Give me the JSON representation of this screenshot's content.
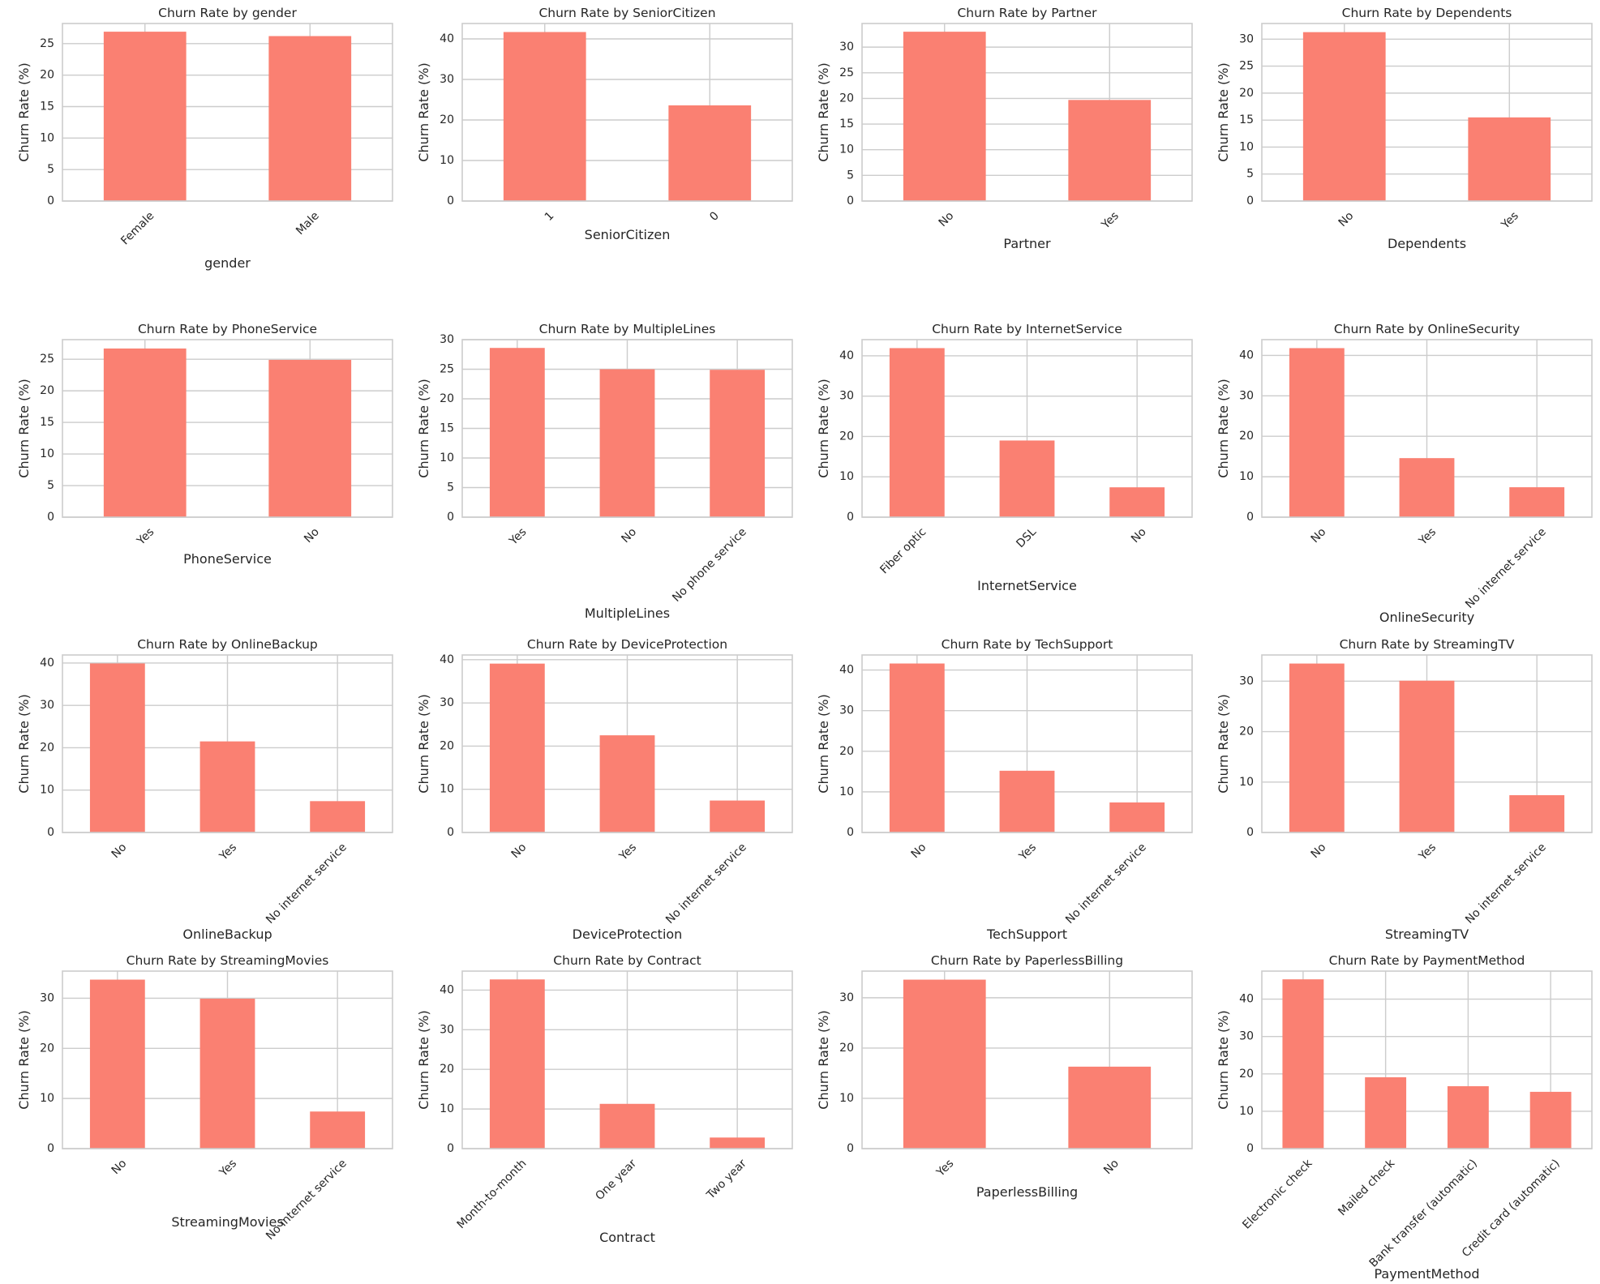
{
  "colors": {
    "bar": "#FA8072",
    "grid": "#cccccc",
    "background": "#ffffff"
  },
  "chart_data": [
    {
      "type": "bar",
      "title": "Churn Rate by gender",
      "xlabel": "gender",
      "ylabel": "Churn Rate (%)",
      "categories": [
        "Female",
        "Male"
      ],
      "values": [
        26.9,
        26.2
      ],
      "ylim": [
        0,
        28.2
      ],
      "yticks": [
        "0",
        "5",
        "10",
        "15",
        "20",
        "25"
      ],
      "ytick_values": [
        0,
        5,
        10,
        15,
        20,
        25
      ]
    },
    {
      "type": "bar",
      "title": "Churn Rate by SeniorCitizen",
      "xlabel": "SeniorCitizen",
      "ylabel": "Churn Rate (%)",
      "categories": [
        "1",
        "0"
      ],
      "values": [
        41.7,
        23.6
      ],
      "ylim": [
        0,
        43.8
      ],
      "yticks": [
        "0",
        "10",
        "20",
        "30",
        "40"
      ],
      "ytick_values": [
        0,
        10,
        20,
        30,
        40
      ]
    },
    {
      "type": "bar",
      "title": "Churn Rate by Partner",
      "xlabel": "Partner",
      "ylabel": "Churn Rate (%)",
      "categories": [
        "No",
        "Yes"
      ],
      "values": [
        33.0,
        19.7
      ],
      "ylim": [
        0,
        34.6
      ],
      "yticks": [
        "0",
        "5",
        "10",
        "15",
        "20",
        "25",
        "30"
      ],
      "ytick_values": [
        0,
        5,
        10,
        15,
        20,
        25,
        30
      ]
    },
    {
      "type": "bar",
      "title": "Churn Rate by Dependents",
      "xlabel": "Dependents",
      "ylabel": "Churn Rate (%)",
      "categories": [
        "No",
        "Yes"
      ],
      "values": [
        31.3,
        15.5
      ],
      "ylim": [
        0,
        32.9
      ],
      "yticks": [
        "0",
        "5",
        "10",
        "15",
        "20",
        "25",
        "30"
      ],
      "ytick_values": [
        0,
        5,
        10,
        15,
        20,
        25,
        30
      ]
    },
    {
      "type": "bar",
      "title": "Churn Rate by PhoneService",
      "xlabel": "PhoneService",
      "ylabel": "Churn Rate (%)",
      "categories": [
        "Yes",
        "No"
      ],
      "values": [
        26.7,
        24.9
      ],
      "ylim": [
        0,
        28.1
      ],
      "yticks": [
        "0",
        "5",
        "10",
        "15",
        "20",
        "25"
      ],
      "ytick_values": [
        0,
        5,
        10,
        15,
        20,
        25
      ]
    },
    {
      "type": "bar",
      "title": "Churn Rate by MultipleLines",
      "xlabel": "MultipleLines",
      "ylabel": "Churn Rate (%)",
      "categories": [
        "Yes",
        "No",
        "No phone service"
      ],
      "values": [
        28.6,
        25.0,
        24.9
      ],
      "ylim": [
        0,
        30.0
      ],
      "yticks": [
        "0",
        "5",
        "10",
        "15",
        "20",
        "25",
        "30"
      ],
      "ytick_values": [
        0,
        5,
        10,
        15,
        20,
        25,
        30
      ]
    },
    {
      "type": "bar",
      "title": "Churn Rate by InternetService",
      "xlabel": "InternetService",
      "ylabel": "Churn Rate (%)",
      "categories": [
        "Fiber optic",
        "DSL",
        "No"
      ],
      "values": [
        41.9,
        19.0,
        7.4
      ],
      "ylim": [
        0,
        44.0
      ],
      "yticks": [
        "0",
        "10",
        "20",
        "30",
        "40"
      ],
      "ytick_values": [
        0,
        10,
        20,
        30,
        40
      ]
    },
    {
      "type": "bar",
      "title": "Churn Rate by OnlineSecurity",
      "xlabel": "OnlineSecurity",
      "ylabel": "Churn Rate (%)",
      "categories": [
        "No",
        "Yes",
        "No internet service"
      ],
      "values": [
        41.8,
        14.6,
        7.4
      ],
      "ylim": [
        0,
        43.9
      ],
      "yticks": [
        "0",
        "10",
        "20",
        "30",
        "40"
      ],
      "ytick_values": [
        0,
        10,
        20,
        30,
        40
      ]
    },
    {
      "type": "bar",
      "title": "Churn Rate by OnlineBackup",
      "xlabel": "OnlineBackup",
      "ylabel": "Churn Rate (%)",
      "categories": [
        "No",
        "Yes",
        "No internet service"
      ],
      "values": [
        39.9,
        21.5,
        7.4
      ],
      "ylim": [
        0,
        41.9
      ],
      "yticks": [
        "0",
        "10",
        "20",
        "30",
        "40"
      ],
      "ytick_values": [
        0,
        10,
        20,
        30,
        40
      ]
    },
    {
      "type": "bar",
      "title": "Churn Rate by DeviceProtection",
      "xlabel": "DeviceProtection",
      "ylabel": "Churn Rate (%)",
      "categories": [
        "No",
        "Yes",
        "No internet service"
      ],
      "values": [
        39.1,
        22.5,
        7.4
      ],
      "ylim": [
        0,
        41.1
      ],
      "yticks": [
        "0",
        "10",
        "20",
        "30",
        "40"
      ],
      "ytick_values": [
        0,
        10,
        20,
        30,
        40
      ]
    },
    {
      "type": "bar",
      "title": "Churn Rate by TechSupport",
      "xlabel": "TechSupport",
      "ylabel": "Churn Rate (%)",
      "categories": [
        "No",
        "Yes",
        "No internet service"
      ],
      "values": [
        41.6,
        15.2,
        7.4
      ],
      "ylim": [
        0,
        43.7
      ],
      "yticks": [
        "0",
        "10",
        "20",
        "30",
        "40"
      ],
      "ytick_values": [
        0,
        10,
        20,
        30,
        40
      ]
    },
    {
      "type": "bar",
      "title": "Churn Rate by StreamingTV",
      "xlabel": "StreamingTV",
      "ylabel": "Churn Rate (%)",
      "categories": [
        "No",
        "Yes",
        "No internet service"
      ],
      "values": [
        33.5,
        30.1,
        7.4
      ],
      "ylim": [
        0,
        35.2
      ],
      "yticks": [
        "0",
        "10",
        "20",
        "30"
      ],
      "ytick_values": [
        0,
        10,
        20,
        30
      ]
    },
    {
      "type": "bar",
      "title": "Churn Rate by StreamingMovies",
      "xlabel": "StreamingMovies",
      "ylabel": "Churn Rate (%)",
      "categories": [
        "No",
        "Yes",
        "No internet service"
      ],
      "values": [
        33.7,
        29.9,
        7.4
      ],
      "ylim": [
        0,
        35.4
      ],
      "yticks": [
        "0",
        "10",
        "20",
        "30"
      ],
      "ytick_values": [
        0,
        10,
        20,
        30
      ]
    },
    {
      "type": "bar",
      "title": "Churn Rate by Contract",
      "xlabel": "Contract",
      "ylabel": "Churn Rate (%)",
      "categories": [
        "Month-to-month",
        "One year",
        "Two year"
      ],
      "values": [
        42.7,
        11.3,
        2.8
      ],
      "ylim": [
        0,
        44.8
      ],
      "yticks": [
        "0",
        "10",
        "20",
        "30",
        "40"
      ],
      "ytick_values": [
        0,
        10,
        20,
        30,
        40
      ]
    },
    {
      "type": "bar",
      "title": "Churn Rate by PaperlessBilling",
      "xlabel": "PaperlessBilling",
      "ylabel": "Churn Rate (%)",
      "categories": [
        "Yes",
        "No"
      ],
      "values": [
        33.6,
        16.3
      ],
      "ylim": [
        0,
        35.3
      ],
      "yticks": [
        "0",
        "10",
        "20",
        "30"
      ],
      "ytick_values": [
        0,
        10,
        20,
        30
      ]
    },
    {
      "type": "bar",
      "title": "Churn Rate by PaymentMethod",
      "xlabel": "PaymentMethod",
      "ylabel": "Churn Rate (%)",
      "categories": [
        "Electronic check",
        "Mailed check",
        "Bank transfer (automatic)",
        "Credit card (automatic)"
      ],
      "values": [
        45.3,
        19.1,
        16.7,
        15.2
      ],
      "ylim": [
        0,
        47.5
      ],
      "yticks": [
        "0",
        "10",
        "20",
        "30",
        "40"
      ],
      "ytick_values": [
        0,
        10,
        20,
        30,
        40
      ]
    }
  ]
}
